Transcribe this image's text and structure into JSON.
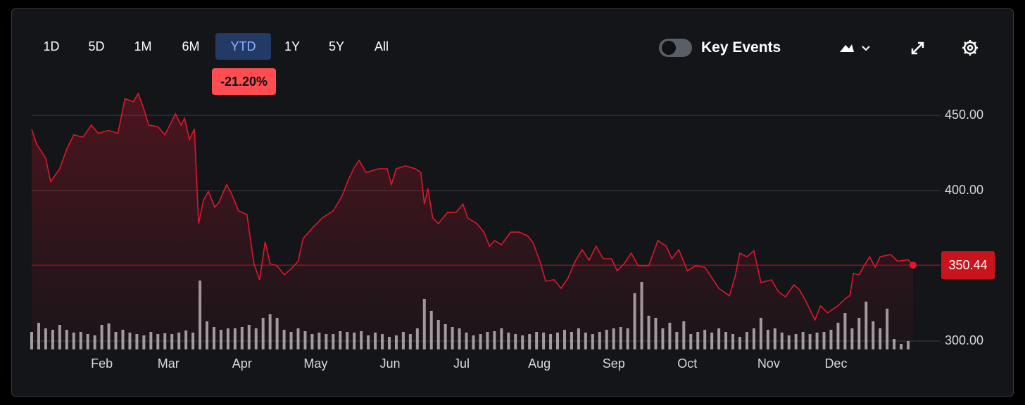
{
  "ui": {
    "ranges": [
      "1D",
      "5D",
      "1M",
      "6M",
      "YTD",
      "1Y",
      "5Y",
      "All"
    ],
    "selected_range": 4,
    "change_label": "-21.20%",
    "toggle_label": "Key Events",
    "key_events_on": false
  },
  "chart_data": {
    "type": "line",
    "color": "#e0162b",
    "x": [
      0,
      1.4,
      4,
      5.4,
      8,
      10,
      12,
      14.6,
      17,
      19,
      22,
      24.6,
      26.6,
      29,
      30.4,
      32,
      33.4,
      36,
      38,
      41,
      42.6,
      43.6,
      45,
      46.4,
      47.6,
      49,
      50.4,
      52.2,
      53.4,
      55.6,
      57,
      59,
      61.4,
      63.4,
      65,
      66.6,
      68,
      70,
      72,
      74,
      76,
      77.4,
      80,
      83,
      86,
      88.4,
      90.4,
      92,
      93.4,
      95.4,
      99,
      101.4,
      102.6,
      104,
      106.6,
      109.4,
      111,
      112,
      113,
      114.4,
      116,
      118.6,
      121,
      123,
      124.4,
      127,
      129,
      130.6,
      132,
      134,
      136.6,
      139,
      141.4,
      143,
      145,
      146.6,
      149,
      151,
      153,
      155,
      157,
      159,
      161,
      163,
      165.4,
      167,
      169,
      171,
      173,
      176,
      178.6,
      181,
      182.6,
      184.6,
      187,
      189.4,
      192,
      194,
      196,
      199,
      200.6,
      202,
      204,
      206,
      208,
      211,
      213,
      215,
      217.4,
      219,
      221,
      223.4,
      225,
      227,
      230,
      232,
      233.4,
      234.4,
      236,
      237.4,
      239,
      240.6,
      242,
      245,
      247,
      250,
      251.4
    ],
    "series": [
      {
        "values": [
          440.7,
          431,
          421.5,
          406,
          414.5,
          427.6,
          437,
          435.5,
          443.5,
          438,
          440,
          438,
          461,
          459,
          464.5,
          454,
          443.5,
          442.5,
          437,
          451,
          443.5,
          448,
          434,
          441,
          378,
          393.5,
          399.5,
          389,
          392,
          404,
          398,
          386.5,
          384,
          351.4,
          340.7,
          366,
          351.4,
          350,
          344,
          348,
          353,
          368,
          375,
          382,
          386.5,
          395.8,
          407.5,
          415.4,
          420,
          412,
          414.5,
          414.5,
          404,
          414.5,
          416.4,
          414.5,
          412,
          391,
          401.4,
          381.8,
          378,
          385.5,
          385.5,
          391,
          381.8,
          378,
          372.4,
          363,
          366.8,
          364,
          372.4,
          372.4,
          370,
          365.4,
          352.8,
          339.7,
          340.7,
          335,
          342,
          352.8,
          360.7,
          353.7,
          363,
          354.7,
          354.7,
          346.7,
          351.4,
          358.4,
          350,
          350,
          366.8,
          363,
          354.7,
          360.7,
          346.7,
          350,
          349,
          342,
          335,
          330,
          342.6,
          358.4,
          356,
          360,
          338.8,
          340.7,
          332.7,
          329.4,
          337.4,
          334,
          325.7,
          314,
          323.4,
          318.7,
          323.4,
          328,
          330.4,
          345,
          344,
          350,
          356,
          349,
          356,
          357.5,
          353,
          354,
          350.44
        ]
      }
    ],
    "current_label": "350.44",
    "volume": {
      "color": "#b9b9bd",
      "x": [
        0,
        2,
        4,
        6,
        8,
        10,
        12,
        14,
        16,
        18,
        20,
        22,
        24,
        26,
        28,
        30,
        32,
        34,
        36,
        38,
        40,
        42,
        44,
        46,
        48,
        50,
        52,
        54,
        56,
        58,
        60,
        62,
        64,
        66,
        68,
        70,
        72,
        74,
        76,
        78,
        80,
        82,
        84,
        86,
        88,
        90,
        92,
        94,
        96,
        98,
        100,
        102,
        104,
        106,
        108,
        110,
        112,
        114,
        116,
        118,
        120,
        122,
        124,
        126,
        128,
        130,
        132,
        134,
        136,
        138,
        140,
        142,
        144,
        146,
        148,
        150,
        152,
        154,
        156,
        158,
        160,
        162,
        164,
        166,
        168,
        170,
        172,
        174,
        176,
        178,
        180,
        182,
        184,
        186,
        188,
        190,
        192,
        194,
        196,
        198,
        200,
        202,
        204,
        206,
        208,
        210,
        212,
        214,
        216,
        218,
        220,
        222,
        224,
        226,
        228,
        230,
        232,
        234,
        236,
        238,
        240,
        242,
        244,
        246,
        248,
        250
      ],
      "values": [
        25,
        38,
        30,
        28,
        35,
        28,
        24,
        25,
        22,
        20,
        35,
        37,
        25,
        28,
        24,
        22,
        20,
        25,
        22,
        23,
        22,
        24,
        27,
        24,
        98,
        40,
        32,
        28,
        30,
        30,
        32,
        35,
        30,
        45,
        50,
        45,
        28,
        25,
        30,
        26,
        22,
        24,
        22,
        22,
        26,
        25,
        24,
        26,
        20,
        24,
        22,
        18,
        20,
        25,
        22,
        30,
        72,
        55,
        42,
        36,
        32,
        30,
        24,
        20,
        22,
        25,
        26,
        30,
        24,
        22,
        20,
        22,
        25,
        24,
        22,
        24,
        28,
        25,
        30,
        24,
        22,
        25,
        28,
        30,
        32,
        30,
        80,
        96,
        48,
        45,
        30,
        38,
        25,
        40,
        22,
        25,
        28,
        24,
        30,
        25,
        22,
        18,
        25,
        30,
        45,
        28,
        30,
        24,
        20,
        22,
        25,
        22,
        24,
        25,
        28,
        38,
        52,
        30,
        45,
        68,
        40,
        30,
        58,
        15,
        8,
        12
      ],
      "ylim": [
        0,
        100
      ]
    },
    "xlim": [
      0,
      252
    ],
    "xticks": [
      {
        "value": 20,
        "label": "Feb"
      },
      {
        "value": 39,
        "label": "Mar"
      },
      {
        "value": 60,
        "label": "Apr"
      },
      {
        "value": 81,
        "label": "May"
      },
      {
        "value": 102.2,
        "label": "Jun"
      },
      {
        "value": 122.6,
        "label": "Jul"
      },
      {
        "value": 144.8,
        "label": "Aug"
      },
      {
        "value": 166,
        "label": "Sep"
      },
      {
        "value": 187,
        "label": "Oct"
      },
      {
        "value": 210.2,
        "label": "Nov"
      },
      {
        "value": 229.4,
        "label": "Dec"
      }
    ],
    "ylim": [
      294.4,
      465.9
    ],
    "yticks": [
      {
        "value": 300,
        "label": "300.00"
      },
      {
        "value": 400,
        "label": "400.00"
      },
      {
        "value": 450,
        "label": "450.00"
      }
    ],
    "grid": true
  }
}
